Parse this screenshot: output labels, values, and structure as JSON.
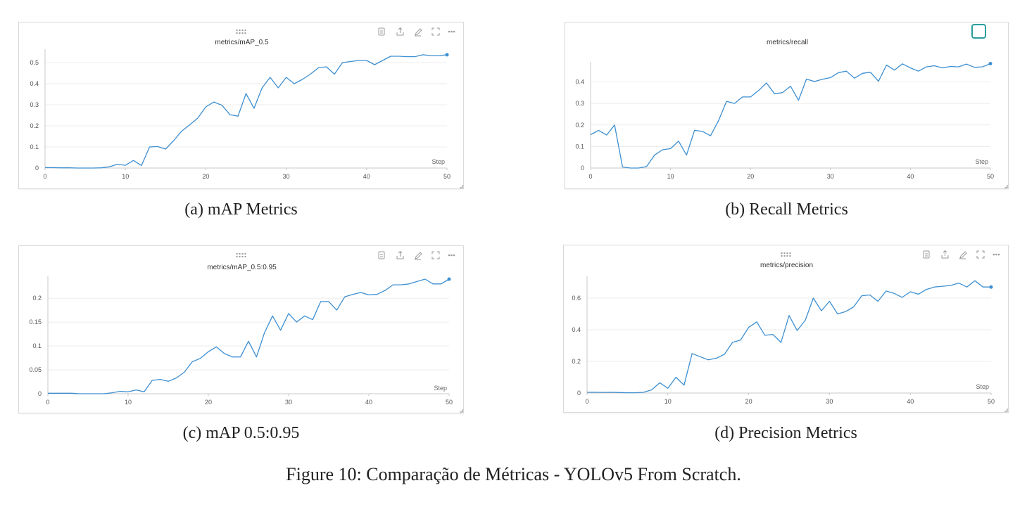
{
  "figure": {
    "caption": "Figure 10: Comparação de Métricas - YOLOv5 From Scratch."
  },
  "colors": {
    "line": "#3d8fd1",
    "grid": "#ececec",
    "axis": "#c8c8c8",
    "highlight": "#2a9d9d"
  },
  "panels": [
    {
      "caption": "(a) mAP Metrics",
      "toolbar": true
    },
    {
      "caption": "(b) Recall Metrics",
      "toolbar": false
    },
    {
      "caption": "(c) mAP 0.5:0.95",
      "toolbar": true
    },
    {
      "caption": "(d) Precision Metrics",
      "toolbar": true
    }
  ],
  "chart_data": [
    {
      "type": "line",
      "title": "metrics/mAP_0.5",
      "xlabel": "Step",
      "xlim": [
        0,
        50
      ],
      "ylim": [
        0,
        0.55
      ],
      "xticks": [
        0,
        10,
        20,
        30,
        40,
        50
      ],
      "xtick_labels": [
        "0",
        "10",
        "20",
        "30",
        "40",
        "50"
      ],
      "yticks": [
        0,
        0.1,
        0.2,
        0.3,
        0.4,
        0.5
      ],
      "ytick_labels": [
        "0",
        "0.1",
        "0.2",
        "0.3",
        "0.4",
        "0.5"
      ],
      "grid": true,
      "x": [
        0,
        1,
        2,
        3,
        4,
        5,
        6,
        7,
        8,
        9,
        10,
        11,
        12,
        13,
        14,
        15,
        16,
        17,
        18,
        19,
        20,
        21,
        22,
        23,
        24,
        25,
        26,
        27,
        28,
        29,
        30,
        31,
        32,
        33,
        34,
        35,
        36,
        37,
        38,
        39,
        40,
        41,
        42,
        43,
        44,
        45,
        46,
        47,
        48,
        49,
        50
      ],
      "y": [
        0.002,
        0.002,
        0.001,
        0.001,
        0,
        0,
        0,
        0.001,
        0.006,
        0.018,
        0.013,
        0.036,
        0.012,
        0.1,
        0.102,
        0.09,
        0.13,
        0.175,
        0.205,
        0.237,
        0.29,
        0.313,
        0.298,
        0.253,
        0.246,
        0.353,
        0.283,
        0.38,
        0.43,
        0.38,
        0.43,
        0.4,
        0.42,
        0.445,
        0.475,
        0.48,
        0.445,
        0.5,
        0.505,
        0.51,
        0.51,
        0.49,
        0.51,
        0.53,
        0.53,
        0.528,
        0.528,
        0.537,
        0.533,
        0.533,
        0.537
      ]
    },
    {
      "type": "line",
      "title": "metrics/recall",
      "xlabel": "Step",
      "xlim": [
        0,
        50
      ],
      "ylim": [
        0,
        0.48
      ],
      "xticks": [
        0,
        10,
        20,
        30,
        40,
        50
      ],
      "xtick_labels": [
        "0",
        "10",
        "20",
        "30",
        "40",
        "50"
      ],
      "yticks": [
        0,
        0.1,
        0.2,
        0.3,
        0.4
      ],
      "ytick_labels": [
        "0",
        "0.1",
        "0.2",
        "0.3",
        "0.4"
      ],
      "grid": true,
      "x": [
        0,
        1,
        2,
        3,
        4,
        5,
        6,
        7,
        8,
        9,
        10,
        11,
        12,
        13,
        14,
        15,
        16,
        17,
        18,
        19,
        20,
        21,
        22,
        23,
        24,
        25,
        26,
        27,
        28,
        29,
        30,
        31,
        32,
        33,
        34,
        35,
        36,
        37,
        38,
        39,
        40,
        41,
        42,
        43,
        44,
        45,
        46,
        47,
        48,
        49,
        50
      ],
      "y": [
        0.155,
        0.175,
        0.153,
        0.2,
        0.005,
        0,
        0,
        0.007,
        0.06,
        0.085,
        0.09,
        0.125,
        0.06,
        0.175,
        0.17,
        0.15,
        0.22,
        0.31,
        0.3,
        0.33,
        0.33,
        0.36,
        0.395,
        0.345,
        0.35,
        0.38,
        0.315,
        0.413,
        0.402,
        0.412,
        0.42,
        0.443,
        0.45,
        0.417,
        0.44,
        0.445,
        0.403,
        0.478,
        0.455,
        0.484,
        0.465,
        0.45,
        0.47,
        0.475,
        0.465,
        0.472,
        0.47,
        0.483,
        0.468,
        0.47,
        0.485
      ]
    },
    {
      "type": "line",
      "title": "metrics/mAP_0.5:0.95",
      "xlabel": "Step",
      "xlim": [
        0,
        50
      ],
      "ylim": [
        0,
        0.24
      ],
      "xticks": [
        0,
        10,
        20,
        30,
        40,
        50
      ],
      "xtick_labels": [
        "0",
        "10",
        "20",
        "30",
        "40",
        "50"
      ],
      "yticks": [
        0,
        0.05,
        0.1,
        0.15,
        0.2
      ],
      "ytick_labels": [
        "0",
        "0.05",
        "0.1",
        "0.15",
        "0.2"
      ],
      "grid": true,
      "x": [
        0,
        1,
        2,
        3,
        4,
        5,
        6,
        7,
        8,
        9,
        10,
        11,
        12,
        13,
        14,
        15,
        16,
        17,
        18,
        19,
        20,
        21,
        22,
        23,
        24,
        25,
        26,
        27,
        28,
        29,
        30,
        31,
        32,
        33,
        34,
        35,
        36,
        37,
        38,
        39,
        40,
        41,
        42,
        43,
        44,
        45,
        46,
        47,
        48,
        49,
        50
      ],
      "y": [
        0.001,
        0.001,
        0.001,
        0.001,
        0,
        0,
        0,
        0,
        0.002,
        0.005,
        0.004,
        0.008,
        0.004,
        0.028,
        0.03,
        0.026,
        0.033,
        0.045,
        0.067,
        0.074,
        0.088,
        0.098,
        0.084,
        0.077,
        0.077,
        0.11,
        0.077,
        0.128,
        0.163,
        0.133,
        0.168,
        0.15,
        0.163,
        0.155,
        0.193,
        0.193,
        0.175,
        0.203,
        0.208,
        0.212,
        0.207,
        0.208,
        0.216,
        0.228,
        0.228,
        0.23,
        0.235,
        0.24,
        0.23,
        0.23,
        0.24
      ]
    },
    {
      "type": "line",
      "title": "metrics/precision",
      "xlabel": "Step",
      "xlim": [
        0,
        50
      ],
      "ylim": [
        0,
        0.72
      ],
      "xticks": [
        0,
        10,
        20,
        30,
        40,
        50
      ],
      "xtick_labels": [
        "0",
        "10",
        "20",
        "30",
        "40",
        "50"
      ],
      "yticks": [
        0,
        0.2,
        0.4,
        0.6
      ],
      "ytick_labels": [
        "0",
        "0.2",
        "0.4",
        "0.6"
      ],
      "grid": true,
      "x": [
        0,
        1,
        2,
        3,
        4,
        5,
        6,
        7,
        8,
        9,
        10,
        11,
        12,
        13,
        14,
        15,
        16,
        17,
        18,
        19,
        20,
        21,
        22,
        23,
        24,
        25,
        26,
        27,
        28,
        29,
        30,
        31,
        32,
        33,
        34,
        35,
        36,
        37,
        38,
        39,
        40,
        41,
        42,
        43,
        44,
        45,
        46,
        47,
        48,
        49,
        50
      ],
      "y": [
        0.005,
        0.005,
        0.004,
        0.005,
        0.003,
        0.002,
        0.002,
        0.005,
        0.02,
        0.065,
        0.03,
        0.1,
        0.05,
        0.25,
        0.23,
        0.21,
        0.22,
        0.245,
        0.32,
        0.335,
        0.415,
        0.45,
        0.365,
        0.37,
        0.32,
        0.49,
        0.395,
        0.46,
        0.6,
        0.52,
        0.58,
        0.5,
        0.515,
        0.545,
        0.615,
        0.62,
        0.58,
        0.645,
        0.63,
        0.605,
        0.64,
        0.625,
        0.655,
        0.67,
        0.675,
        0.68,
        0.695,
        0.67,
        0.71,
        0.67,
        0.67
      ]
    }
  ]
}
